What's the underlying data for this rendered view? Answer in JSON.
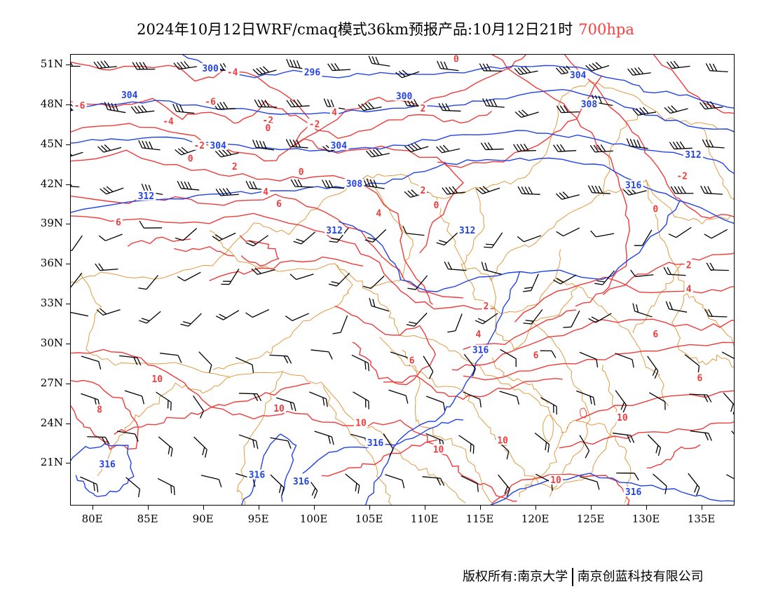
{
  "title": {
    "main": "2024年10月12日WRF/cmaq模式36km预报产品:10月12日21时",
    "level": "700hpa"
  },
  "colors": {
    "height_contour": "#2243e6",
    "temperature_contour": "#ee3b3b",
    "boundary": "#e0902e",
    "wind_barb": "#000000",
    "level_text": "#ff3b3b"
  },
  "axes": {
    "lat_labels": [
      "51N",
      "48N",
      "45N",
      "42N",
      "39N",
      "36N",
      "33N",
      "30N",
      "27N",
      "24N",
      "21N"
    ],
    "lat_values": [
      51,
      48,
      45,
      42,
      39,
      36,
      33,
      30,
      27,
      24,
      21
    ],
    "lon_labels": [
      "80E",
      "85E",
      "90E",
      "95E",
      "100E",
      "105E",
      "110E",
      "115E",
      "120E",
      "125E",
      "130E",
      "135E"
    ],
    "lon_values": [
      80,
      85,
      90,
      95,
      100,
      105,
      110,
      115,
      120,
      125,
      130,
      135
    ],
    "lon_range": [
      78,
      138
    ],
    "lat_range": [
      17.8,
      51.8
    ]
  },
  "height_contours": {
    "labels": [
      {
        "text": "300",
        "lon": 90.6,
        "lat": 50.8
      },
      {
        "text": "296",
        "lon": 99.8,
        "lat": 50.5
      },
      {
        "text": "304",
        "lon": 83.3,
        "lat": 48.8
      },
      {
        "text": "300",
        "lon": 108.1,
        "lat": 48.7
      },
      {
        "text": "304",
        "lon": 123.8,
        "lat": 50.3
      },
      {
        "text": "308",
        "lon": 124.8,
        "lat": 48.1
      },
      {
        "text": "304",
        "lon": 91.3,
        "lat": 45.0
      },
      {
        "text": "304",
        "lon": 102.2,
        "lat": 45.0
      },
      {
        "text": "312",
        "lon": 134.2,
        "lat": 44.3
      },
      {
        "text": "308",
        "lon": 103.6,
        "lat": 42.1
      },
      {
        "text": "316",
        "lon": 128.8,
        "lat": 42.0
      },
      {
        "text": "312",
        "lon": 84.8,
        "lat": 41.2
      },
      {
        "text": "312",
        "lon": 101.8,
        "lat": 38.6
      },
      {
        "text": "312",
        "lon": 113.8,
        "lat": 38.6
      },
      {
        "text": "316",
        "lon": 115.0,
        "lat": 29.6
      },
      {
        "text": "316",
        "lon": 105.5,
        "lat": 22.6
      },
      {
        "text": "316",
        "lon": 81.3,
        "lat": 21.0
      },
      {
        "text": "316",
        "lon": 94.8,
        "lat": 20.2
      },
      {
        "text": "316",
        "lon": 98.8,
        "lat": 19.7
      },
      {
        "text": "316",
        "lon": 128.8,
        "lat": 18.9
      }
    ]
  },
  "temperature_contours": {
    "labels": [
      {
        "text": "-4",
        "lon": 92.6,
        "lat": 50.5
      },
      {
        "text": "0",
        "lon": 112.8,
        "lat": 51.5
      },
      {
        "text": "-6",
        "lon": 78.8,
        "lat": 48.0
      },
      {
        "text": "-6",
        "lon": 90.6,
        "lat": 48.3
      },
      {
        "text": "-4",
        "lon": 86.8,
        "lat": 46.8
      },
      {
        "text": "-2",
        "lon": 95.8,
        "lat": 46.9
      },
      {
        "text": "0",
        "lon": 95.8,
        "lat": 46.3
      },
      {
        "text": "-2",
        "lon": 100.0,
        "lat": 46.6
      },
      {
        "text": "4",
        "lon": 101.8,
        "lat": 47.5
      },
      {
        "text": "2",
        "lon": 109.8,
        "lat": 47.8
      },
      {
        "text": "-2",
        "lon": 89.6,
        "lat": 45.0
      },
      {
        "text": "0",
        "lon": 88.8,
        "lat": 44.0
      },
      {
        "text": "2",
        "lon": 92.8,
        "lat": 43.4
      },
      {
        "text": "0",
        "lon": 98.8,
        "lat": 43.0
      },
      {
        "text": "-2",
        "lon": 133.2,
        "lat": 42.7
      },
      {
        "text": "2",
        "lon": 109.8,
        "lat": 41.6
      },
      {
        "text": "4",
        "lon": 95.6,
        "lat": 41.5
      },
      {
        "text": "6",
        "lon": 96.8,
        "lat": 40.6
      },
      {
        "text": "0",
        "lon": 111.0,
        "lat": 40.5
      },
      {
        "text": "0",
        "lon": 130.8,
        "lat": 40.2
      },
      {
        "text": "4",
        "lon": 105.8,
        "lat": 39.9
      },
      {
        "text": "6",
        "lon": 82.3,
        "lat": 39.2
      },
      {
        "text": "2",
        "lon": 133.8,
        "lat": 36.0
      },
      {
        "text": "4",
        "lon": 133.8,
        "lat": 34.2
      },
      {
        "text": "2",
        "lon": 115.5,
        "lat": 32.9
      },
      {
        "text": "4",
        "lon": 114.8,
        "lat": 30.8
      },
      {
        "text": "6",
        "lon": 130.8,
        "lat": 30.8
      },
      {
        "text": "6",
        "lon": 108.8,
        "lat": 28.8
      },
      {
        "text": "6",
        "lon": 120.0,
        "lat": 29.2
      },
      {
        "text": "6",
        "lon": 134.8,
        "lat": 27.5
      },
      {
        "text": "10",
        "lon": 85.8,
        "lat": 27.4
      },
      {
        "text": "8",
        "lon": 80.6,
        "lat": 25.1
      },
      {
        "text": "10",
        "lon": 96.8,
        "lat": 25.2
      },
      {
        "text": "10",
        "lon": 104.2,
        "lat": 24.1
      },
      {
        "text": "10",
        "lon": 127.8,
        "lat": 24.5
      },
      {
        "text": "10",
        "lon": 111.2,
        "lat": 22.1
      },
      {
        "text": "10",
        "lon": 117.0,
        "lat": 22.8
      },
      {
        "text": "10",
        "lon": 121.8,
        "lat": 19.8
      }
    ]
  },
  "copyright": {
    "left": "版权所有:南京大学",
    "right": "南京创蓝科技有限公司"
  }
}
